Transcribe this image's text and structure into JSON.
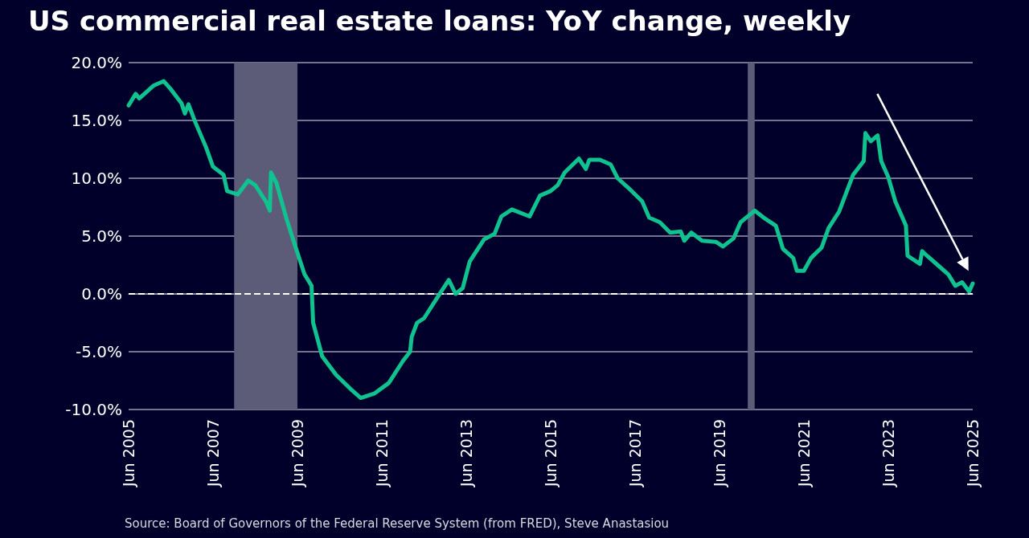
{
  "chart_data": {
    "type": "line",
    "title": "US commercial real estate loans: YoY change, weekly",
    "annotations": [
      "Source: Board of Governors of the Federal Reserve System (from FRED), Steve Anastasiou"
    ],
    "x": [
      "2005-06-01",
      "2005-08",
      "2005-09",
      "2006-01",
      "2006-04",
      "2006-06",
      "2006-09",
      "2006-10",
      "2006-11",
      "2007-01",
      "2007-04",
      "2007-06",
      "2007-09",
      "2007-10",
      "2008-01",
      "2008-04",
      "2008-06",
      "2008-09",
      "2008-10-05",
      "2008-10-15",
      "2008-12",
      "2009-03",
      "2009-05",
      "2009-08-01",
      "2009-10-01",
      "2009-10-15",
      "2010-01",
      "2010-05",
      "2010-09",
      "2010-12",
      "2011-04",
      "2011-08",
      "2011-12",
      "2012-02-01",
      "2012-02-15",
      "2012-04",
      "2012-06",
      "2012-10",
      "2013-01",
      "2013-03",
      "2013-05",
      "2013-07",
      "2013-11",
      "2014-02",
      "2014-04",
      "2014-07",
      "2014-12",
      "2015-03",
      "2015-06",
      "2015-08",
      "2015-10",
      "2016-02",
      "2016-04",
      "2016-05",
      "2016-08",
      "2016-11",
      "2017-01",
      "2017-04",
      "2017-08",
      "2017-10",
      "2018-01",
      "2018-04",
      "2018-07",
      "2018-08",
      "2018-10",
      "2019-01",
      "2019-05",
      "2019-07",
      "2019-10",
      "2019-12",
      "2020-04",
      "2020-07",
      "2020-10",
      "2020-12",
      "2021-03",
      "2021-04",
      "2021-06",
      "2021-08",
      "2021-11",
      "2022-01",
      "2022-04",
      "2022-06",
      "2022-08",
      "2022-11-01",
      "2022-11-15",
      "2023-01",
      "2023-03",
      "2023-04",
      "2023-06",
      "2023-08",
      "2023-11-01",
      "2023-11-15",
      "2024-03-01",
      "2024-03-20",
      "2024-05",
      "2024-08",
      "2024-11",
      "2025-01",
      "2025-03",
      "2025-05",
      "2025-06-01"
    ],
    "series": [
      {
        "color": "#10c28f",
        "values": [
          16.3,
          17.3,
          16.9,
          18.0,
          18.4,
          17.7,
          16.5,
          15.6,
          16.4,
          14.8,
          12.7,
          11.0,
          10.3,
          8.9,
          8.6,
          9.8,
          9.4,
          8.0,
          7.2,
          10.5,
          9.6,
          6.4,
          4.5,
          1.7,
          0.7,
          -2.5,
          -5.4,
          -7.0,
          -8.2,
          -9.0,
          -8.6,
          -7.7,
          -5.8,
          -5.0,
          -3.7,
          -2.5,
          -2.1,
          -0.2,
          1.2,
          0.0,
          0.5,
          2.8,
          4.7,
          5.2,
          6.7,
          7.3,
          6.7,
          8.5,
          8.9,
          9.4,
          10.5,
          11.7,
          10.8,
          11.6,
          11.6,
          11.2,
          10.0,
          9.2,
          8.0,
          6.6,
          6.2,
          5.3,
          5.4,
          4.6,
          5.3,
          4.6,
          4.5,
          4.1,
          4.8,
          6.2,
          7.2,
          6.5,
          5.9,
          3.9,
          3.1,
          2.0,
          2.0,
          3.1,
          4.0,
          5.7,
          7.1,
          8.7,
          10.3,
          11.5,
          13.9,
          13.2,
          13.7,
          11.5,
          10.1,
          8.0,
          5.9,
          3.3,
          2.6,
          3.7,
          3.3,
          2.5,
          1.7,
          0.7,
          1.0,
          0.2,
          0.9
        ]
      }
    ],
    "xlim": [
      "2005-06-01",
      "2025-06-01"
    ],
    "xticks": [
      {
        "value": "2005-06-01",
        "label": "Jun 2005"
      },
      {
        "value": "2007-06-01",
        "label": "Jun 2007"
      },
      {
        "value": "2009-06-01",
        "label": "Jun 2009"
      },
      {
        "value": "2011-06-01",
        "label": "Jun 2011"
      },
      {
        "value": "2013-06-01",
        "label": "Jun 2013"
      },
      {
        "value": "2015-06-01",
        "label": "Jun 2015"
      },
      {
        "value": "2017-06-01",
        "label": "Jun 2017"
      },
      {
        "value": "2019-06-01",
        "label": "Jun 2019"
      },
      {
        "value": "2021-06-01",
        "label": "Jun 2021"
      },
      {
        "value": "2023-06-01",
        "label": "Jun 2023"
      },
      {
        "value": "2025-06-01",
        "label": "Jun 2025"
      }
    ],
    "ylim": [
      -10,
      20
    ],
    "yticks": [
      {
        "value": -10,
        "label": "-10.0%"
      },
      {
        "value": -5,
        "label": "-5.0%"
      },
      {
        "value": 0,
        "label": "0.0%"
      },
      {
        "value": 5,
        "label": "5.0%"
      },
      {
        "value": 10,
        "label": "10.0%"
      },
      {
        "value": 15,
        "label": "15.0%"
      },
      {
        "value": 20,
        "label": "20.0%"
      }
    ],
    "bands": [
      {
        "axis": "x",
        "from": "2007-12-01",
        "to": "2009-06-01",
        "color": "#5c5c78"
      },
      {
        "axis": "x",
        "from": "2020-02-01",
        "to": "2020-04-01",
        "color": "#5c5c78"
      }
    ],
    "ref_lines": [
      {
        "axis": "y",
        "value": 0,
        "color": "#ffffff",
        "line_style": "dashed"
      }
    ],
    "grid": "y",
    "marker": "none",
    "line_style": "solid"
  }
}
